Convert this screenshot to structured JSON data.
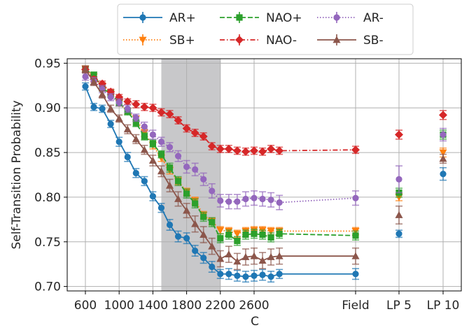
{
  "chart_data": {
    "type": "line",
    "xlabel": "C",
    "ylabel": "Self-Transition Probability",
    "ylim": [
      0.695,
      0.955
    ],
    "yticks": [
      "0.70",
      "0.75",
      "0.80",
      "0.85",
      "0.90",
      "0.95"
    ],
    "ytick_values": [
      0.7,
      0.75,
      0.8,
      0.85,
      0.9,
      0.95
    ],
    "xtick_labels": [
      "600",
      "1000",
      "1400",
      "1800",
      "2200",
      "2600",
      "Field",
      "LP 5",
      "LP 10"
    ],
    "xtick_values": [
      600,
      1000,
      1400,
      1800,
      2200,
      2600,
      "Field",
      "LP 5",
      "LP 10"
    ],
    "shaded_region": [
      1500,
      2200
    ],
    "grid": true,
    "legend_position": "top",
    "x": [
      600,
      700,
      800,
      900,
      1000,
      1100,
      1200,
      1300,
      1400,
      1500,
      1600,
      1700,
      1800,
      1900,
      2000,
      2100,
      2200,
      2300,
      2400,
      2500,
      2600,
      2700,
      2800,
      2900,
      "Field"
    ],
    "extra_x": [
      "LP 5",
      "LP 10"
    ],
    "series": [
      {
        "name": "AR+",
        "color": "#1f77b4",
        "marker": "circle",
        "linestyle": "solid",
        "values": [
          0.924,
          0.901,
          0.899,
          0.882,
          0.862,
          0.845,
          0.827,
          0.818,
          0.801,
          0.788,
          0.769,
          0.756,
          0.754,
          0.74,
          0.732,
          0.722,
          0.714,
          0.714,
          0.712,
          0.711,
          0.712,
          0.713,
          0.711,
          0.714,
          0.714
        ],
        "errors": [
          0.004,
          0.004,
          0.004,
          0.004,
          0.005,
          0.005,
          0.005,
          0.005,
          0.005,
          0.005,
          0.006,
          0.006,
          0.006,
          0.006,
          0.006,
          0.006,
          0.005,
          0.006,
          0.006,
          0.006,
          0.006,
          0.006,
          0.006,
          0.005,
          0.006
        ],
        "extra_values": [
          0.759,
          0.826
        ],
        "extra_errors": [
          0.004,
          0.007
        ]
      },
      {
        "name": "SB+",
        "color": "#ff7f0e",
        "marker": "triangle-down",
        "linestyle": "dotted",
        "values": [
          0.944,
          0.935,
          0.925,
          0.917,
          0.905,
          0.896,
          0.888,
          0.872,
          0.858,
          0.844,
          0.83,
          0.818,
          0.806,
          0.796,
          0.78,
          0.773,
          0.763,
          0.762,
          0.759,
          0.762,
          0.763,
          0.763,
          0.762,
          0.762,
          0.762
        ],
        "errors": [
          0.003,
          0.003,
          0.003,
          0.003,
          0.003,
          0.003,
          0.003,
          0.004,
          0.004,
          0.004,
          0.004,
          0.004,
          0.004,
          0.004,
          0.004,
          0.004,
          0.004,
          0.004,
          0.004,
          0.004,
          0.004,
          0.004,
          0.004,
          0.004,
          0.004
        ],
        "extra_values": [
          0.8,
          0.85
        ],
        "extra_errors": [
          0.004,
          0.005
        ]
      },
      {
        "name": "NAO+",
        "color": "#2ca02c",
        "marker": "square",
        "linestyle": "dashed",
        "values": [
          0.943,
          0.937,
          0.922,
          0.916,
          0.906,
          0.896,
          0.883,
          0.868,
          0.86,
          0.848,
          0.833,
          0.818,
          0.804,
          0.793,
          0.778,
          0.772,
          0.754,
          0.758,
          0.751,
          0.758,
          0.759,
          0.758,
          0.755,
          0.759,
          0.757
        ],
        "errors": [
          0.003,
          0.003,
          0.003,
          0.004,
          0.004,
          0.004,
          0.004,
          0.004,
          0.004,
          0.004,
          0.005,
          0.005,
          0.005,
          0.005,
          0.005,
          0.005,
          0.005,
          0.005,
          0.005,
          0.005,
          0.005,
          0.005,
          0.005,
          0.005,
          0.005
        ],
        "extra_values": [
          0.805,
          0.87
        ],
        "extra_errors": [
          0.005,
          0.005
        ]
      },
      {
        "name": "NAO-",
        "color": "#d62728",
        "marker": "diamond",
        "linestyle": "dashdot",
        "values": [
          0.943,
          0.932,
          0.927,
          0.918,
          0.912,
          0.907,
          0.904,
          0.901,
          0.9,
          0.895,
          0.893,
          0.886,
          0.877,
          0.872,
          0.868,
          0.857,
          0.854,
          0.854,
          0.852,
          0.851,
          0.852,
          0.851,
          0.854,
          0.852,
          0.853
        ],
        "errors": [
          0.003,
          0.003,
          0.003,
          0.003,
          0.003,
          0.003,
          0.004,
          0.004,
          0.004,
          0.004,
          0.004,
          0.004,
          0.004,
          0.004,
          0.004,
          0.004,
          0.004,
          0.004,
          0.004,
          0.004,
          0.004,
          0.004,
          0.004,
          0.004,
          0.004
        ],
        "extra_values": [
          0.87,
          0.892
        ],
        "extra_errors": [
          0.005,
          0.005
        ]
      },
      {
        "name": "AR-",
        "color": "#9467bd",
        "marker": "circle",
        "linestyle": "dotted",
        "values": [
          0.935,
          0.93,
          0.921,
          0.912,
          0.906,
          0.899,
          0.889,
          0.879,
          0.87,
          0.862,
          0.856,
          0.846,
          0.834,
          0.831,
          0.82,
          0.807,
          0.796,
          0.795,
          0.795,
          0.798,
          0.799,
          0.798,
          0.797,
          0.794,
          0.799
        ],
        "errors": [
          0.004,
          0.004,
          0.004,
          0.004,
          0.004,
          0.004,
          0.004,
          0.005,
          0.005,
          0.005,
          0.005,
          0.006,
          0.007,
          0.007,
          0.007,
          0.008,
          0.007,
          0.008,
          0.008,
          0.008,
          0.008,
          0.008,
          0.008,
          0.008,
          0.008
        ],
        "extra_values": [
          0.82,
          0.87
        ],
        "extra_errors": [
          0.015,
          0.007
        ]
      },
      {
        "name": "SB-",
        "color": "#8c564b",
        "marker": "triangle-up",
        "linestyle": "solid",
        "values": [
          0.943,
          0.929,
          0.915,
          0.899,
          0.888,
          0.876,
          0.865,
          0.853,
          0.841,
          0.829,
          0.813,
          0.798,
          0.785,
          0.77,
          0.758,
          0.745,
          0.731,
          0.736,
          0.728,
          0.733,
          0.734,
          0.729,
          0.733,
          0.734,
          0.734
        ],
        "errors": [
          0.004,
          0.004,
          0.004,
          0.004,
          0.004,
          0.005,
          0.005,
          0.005,
          0.006,
          0.006,
          0.007,
          0.008,
          0.008,
          0.009,
          0.009,
          0.009,
          0.009,
          0.009,
          0.009,
          0.009,
          0.009,
          0.009,
          0.009,
          0.009,
          0.009
        ],
        "extra_values": [
          0.78,
          0.843
        ],
        "extra_errors": [
          0.01,
          0.005
        ]
      }
    ]
  }
}
